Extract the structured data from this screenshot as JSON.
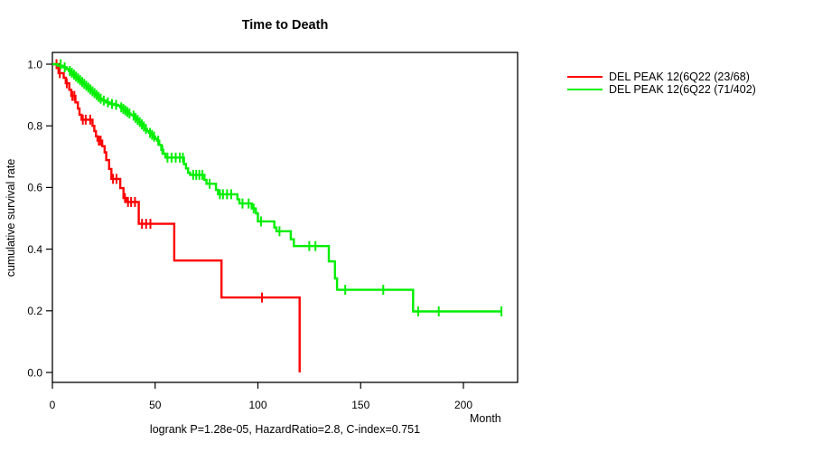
{
  "chart_data": {
    "type": "line",
    "subtype": "kaplan-meier-step-survival",
    "title": "Time to Death",
    "xlabel": "Month",
    "ylabel": "cumulative survival rate",
    "caption": "logrank P=1.28e-05, HazardRatio=2.8, C-index=0.751",
    "xticks": [
      0,
      50,
      100,
      150,
      200
    ],
    "ytick_labels": [
      "0.0",
      "0.2",
      "0.4",
      "0.6",
      "0.8",
      "1.0"
    ],
    "xlim": [
      0,
      226
    ],
    "ylim": [
      0.0,
      1.0
    ],
    "grid": false,
    "legend_position": "right-outside",
    "axis_color": "#000000",
    "series": [
      {
        "name": "DEL PEAK 12(6Q22 (23/68)",
        "color": "#ff0000",
        "steps": [
          [
            0,
            1.0
          ],
          [
            3,
            0.971
          ],
          [
            5.5,
            0.956
          ],
          [
            6.5,
            0.938
          ],
          [
            8.2,
            0.917
          ],
          [
            9.2,
            0.897
          ],
          [
            11.2,
            0.876
          ],
          [
            12.4,
            0.856
          ],
          [
            13.2,
            0.836
          ],
          [
            14.2,
            0.82
          ],
          [
            19.5,
            0.8
          ],
          [
            20.4,
            0.783
          ],
          [
            21.2,
            0.766
          ],
          [
            22,
            0.752
          ],
          [
            24.2,
            0.734
          ],
          [
            25.4,
            0.714
          ],
          [
            26.2,
            0.689
          ],
          [
            27.6,
            0.66
          ],
          [
            28.7,
            0.628
          ],
          [
            33,
            0.598
          ],
          [
            34.6,
            0.566
          ],
          [
            36,
            0.553
          ],
          [
            42,
            0.482
          ],
          [
            59.3,
            0.363
          ],
          [
            82.3,
            0.243
          ],
          [
            120.3,
            0.0
          ]
        ],
        "censors": [
          [
            2,
            1.0
          ],
          [
            3.6,
            0.971
          ],
          [
            7,
            0.938
          ],
          [
            9.7,
            0.897
          ],
          [
            10.7,
            0.897
          ],
          [
            14.8,
            0.82
          ],
          [
            16.2,
            0.82
          ],
          [
            18.4,
            0.82
          ],
          [
            22.6,
            0.752
          ],
          [
            23.5,
            0.752
          ],
          [
            29.5,
            0.628
          ],
          [
            31.2,
            0.628
          ],
          [
            35.3,
            0.566
          ],
          [
            36.8,
            0.553
          ],
          [
            38.3,
            0.553
          ],
          [
            40.2,
            0.553
          ],
          [
            43.6,
            0.482
          ],
          [
            45.6,
            0.482
          ],
          [
            47.7,
            0.482
          ],
          [
            102,
            0.243
          ]
        ]
      },
      {
        "name": "DEL PEAK 12(6Q22 (71/402)",
        "color": "#00ee00",
        "steps": [
          [
            0,
            1.0
          ],
          [
            2.5,
            0.995
          ],
          [
            5,
            0.99
          ],
          [
            7,
            0.984
          ],
          [
            8,
            0.978
          ],
          [
            9,
            0.972
          ],
          [
            10,
            0.966
          ],
          [
            11,
            0.96
          ],
          [
            12,
            0.954
          ],
          [
            13,
            0.948
          ],
          [
            14,
            0.942
          ],
          [
            15,
            0.936
          ],
          [
            16,
            0.93
          ],
          [
            17,
            0.924
          ],
          [
            18,
            0.918
          ],
          [
            19,
            0.912
          ],
          [
            20,
            0.906
          ],
          [
            21,
            0.9
          ],
          [
            22,
            0.894
          ],
          [
            23,
            0.888
          ],
          [
            24,
            0.882
          ],
          [
            26,
            0.876
          ],
          [
            28,
            0.871
          ],
          [
            30,
            0.868
          ],
          [
            32,
            0.865
          ],
          [
            33,
            0.86
          ],
          [
            34,
            0.855
          ],
          [
            35,
            0.85
          ],
          [
            36,
            0.845
          ],
          [
            37,
            0.84
          ],
          [
            38,
            0.836
          ],
          [
            39,
            0.833
          ],
          [
            40,
            0.826
          ],
          [
            41,
            0.819
          ],
          [
            42,
            0.812
          ],
          [
            43,
            0.805
          ],
          [
            44,
            0.798
          ],
          [
            45,
            0.79
          ],
          [
            46,
            0.783
          ],
          [
            47,
            0.777
          ],
          [
            48,
            0.771
          ],
          [
            49,
            0.765
          ],
          [
            50,
            0.758
          ],
          [
            51,
            0.752
          ],
          [
            52,
            0.738
          ],
          [
            53,
            0.722
          ],
          [
            54,
            0.71
          ],
          [
            55,
            0.697
          ],
          [
            64,
            0.676
          ],
          [
            65,
            0.662
          ],
          [
            66,
            0.648
          ],
          [
            67,
            0.641
          ],
          [
            74,
            0.625
          ],
          [
            75,
            0.612
          ],
          [
            79.6,
            0.592
          ],
          [
            80.6,
            0.578
          ],
          [
            90,
            0.562
          ],
          [
            91,
            0.548
          ],
          [
            97,
            0.532
          ],
          [
            99,
            0.516
          ],
          [
            100,
            0.49
          ],
          [
            108,
            0.47
          ],
          [
            109,
            0.458
          ],
          [
            116,
            0.432
          ],
          [
            117.5,
            0.41
          ],
          [
            134.5,
            0.36
          ],
          [
            137.5,
            0.305
          ],
          [
            138.5,
            0.268
          ],
          [
            175.5,
            0.198
          ],
          [
            218.5,
            0.198
          ]
        ],
        "censors": [
          [
            4,
            1.0
          ],
          [
            6,
            0.99
          ],
          [
            8.5,
            0.978
          ],
          [
            9.5,
            0.972
          ],
          [
            10.5,
            0.966
          ],
          [
            11.5,
            0.96
          ],
          [
            12.5,
            0.954
          ],
          [
            13.5,
            0.948
          ],
          [
            14.5,
            0.942
          ],
          [
            15.5,
            0.936
          ],
          [
            16.5,
            0.93
          ],
          [
            17.5,
            0.924
          ],
          [
            18.5,
            0.918
          ],
          [
            19.5,
            0.912
          ],
          [
            20.5,
            0.906
          ],
          [
            21.5,
            0.9
          ],
          [
            22.5,
            0.894
          ],
          [
            23.5,
            0.888
          ],
          [
            25,
            0.882
          ],
          [
            27,
            0.876
          ],
          [
            29,
            0.871
          ],
          [
            31,
            0.868
          ],
          [
            33.5,
            0.86
          ],
          [
            34.5,
            0.855
          ],
          [
            35.5,
            0.85
          ],
          [
            36.5,
            0.845
          ],
          [
            37.5,
            0.84
          ],
          [
            39.5,
            0.833
          ],
          [
            40.5,
            0.826
          ],
          [
            41.5,
            0.819
          ],
          [
            42.5,
            0.812
          ],
          [
            43.5,
            0.805
          ],
          [
            44.5,
            0.798
          ],
          [
            45.5,
            0.79
          ],
          [
            47.5,
            0.777
          ],
          [
            48.5,
            0.771
          ],
          [
            49.5,
            0.765
          ],
          [
            51.5,
            0.752
          ],
          [
            53.5,
            0.722
          ],
          [
            56,
            0.697
          ],
          [
            58,
            0.697
          ],
          [
            60,
            0.697
          ],
          [
            62,
            0.697
          ],
          [
            63.5,
            0.697
          ],
          [
            68.5,
            0.641
          ],
          [
            70,
            0.641
          ],
          [
            71.5,
            0.641
          ],
          [
            73,
            0.641
          ],
          [
            76.5,
            0.612
          ],
          [
            81.5,
            0.578
          ],
          [
            83,
            0.578
          ],
          [
            85,
            0.578
          ],
          [
            87,
            0.578
          ],
          [
            92.5,
            0.548
          ],
          [
            95.5,
            0.548
          ],
          [
            97.9,
            0.532
          ],
          [
            101.5,
            0.49
          ],
          [
            110.5,
            0.458
          ],
          [
            125,
            0.41
          ],
          [
            128,
            0.41
          ],
          [
            142.5,
            0.268
          ],
          [
            161,
            0.268
          ],
          [
            178,
            0.198
          ],
          [
            188,
            0.198
          ],
          [
            218.5,
            0.198
          ]
        ]
      }
    ]
  }
}
